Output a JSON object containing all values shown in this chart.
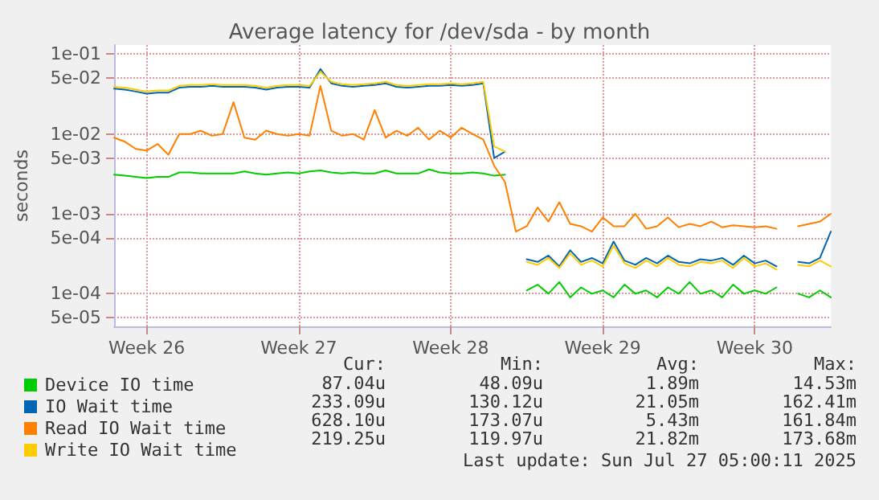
{
  "chart_data": {
    "type": "line",
    "title": "Average latency for /dev/sda - by month",
    "ylabel": "seconds",
    "log": "y",
    "grid": true,
    "legend": "bottom left",
    "marker": "none",
    "line_style": "solid",
    "ylim": [
      3.9e-05,
      0.13
    ],
    "yticks": [
      {
        "value": 0.1,
        "label": "1e-01"
      },
      {
        "value": 0.05,
        "label": "5e-02"
      },
      {
        "value": 0.01,
        "label": "1e-02"
      },
      {
        "value": 0.005,
        "label": "5e-03"
      },
      {
        "value": 0.001,
        "label": "1e-03"
      },
      {
        "value": 0.0005,
        "label": "5e-04"
      },
      {
        "value": 0.0001,
        "label": "1e-04"
      },
      {
        "value": 5e-05,
        "label": "5e-05"
      }
    ],
    "categories": [
      null,
      null,
      null,
      "Week 26",
      null,
      null,
      null,
      null,
      null,
      null,
      null,
      null,
      null,
      null,
      null,
      null,
      null,
      "Week 27",
      null,
      null,
      null,
      null,
      null,
      null,
      null,
      null,
      null,
      null,
      null,
      null,
      null,
      "Week 28",
      null,
      null,
      null,
      null,
      null,
      null,
      null,
      null,
      null,
      null,
      null,
      null,
      null,
      "Week 29",
      null,
      null,
      null,
      null,
      null,
      null,
      null,
      null,
      null,
      null,
      null,
      null,
      null,
      "Week 30",
      null,
      null,
      null,
      null,
      null,
      null,
      null
    ],
    "series": [
      {
        "name": "Device IO time",
        "color": "#00cc00",
        "values": [
          0.0031,
          0.003,
          0.0029,
          0.0028,
          0.0029,
          0.0029,
          0.0033,
          0.0033,
          0.0032,
          0.0032,
          0.0032,
          0.0032,
          0.0034,
          0.0032,
          0.0031,
          0.0032,
          0.0033,
          0.0032,
          0.0034,
          0.0035,
          0.0033,
          0.0032,
          0.0033,
          0.0032,
          0.0032,
          0.0035,
          0.0032,
          0.0032,
          0.0032,
          0.0036,
          0.0033,
          0.0032,
          0.0032,
          0.0033,
          0.0032,
          0.003,
          0.0031,
          null,
          0.00011,
          0.00013,
          0.0001,
          0.00014,
          9e-05,
          0.00012,
          0.0001,
          0.00011,
          9e-05,
          0.00013,
          0.0001,
          0.00011,
          9e-05,
          0.00012,
          0.0001,
          0.00014,
          0.0001,
          0.00011,
          9e-05,
          0.00013,
          0.0001,
          0.00011,
          0.0001,
          0.00012,
          null,
          0.0001,
          9e-05,
          0.00011,
          9e-05
        ]
      },
      {
        "name": "IO Wait time",
        "color": "#0066b3",
        "values": [
          0.037,
          0.036,
          0.034,
          0.032,
          0.033,
          0.033,
          0.038,
          0.039,
          0.039,
          0.04,
          0.039,
          0.039,
          0.039,
          0.038,
          0.036,
          0.038,
          0.039,
          0.039,
          0.038,
          0.065,
          0.043,
          0.04,
          0.039,
          0.04,
          0.041,
          0.043,
          0.039,
          0.038,
          0.039,
          0.04,
          0.04,
          0.041,
          0.04,
          0.041,
          0.043,
          0.005,
          0.006,
          null,
          0.00027,
          0.00025,
          0.0003,
          0.00022,
          0.00035,
          0.00025,
          0.00028,
          0.00024,
          0.00045,
          0.00026,
          0.00023,
          0.00028,
          0.00024,
          0.0003,
          0.00025,
          0.00024,
          0.00027,
          0.00026,
          0.00028,
          0.00023,
          0.0003,
          0.00024,
          0.00026,
          0.00022,
          null,
          0.00025,
          0.00024,
          0.00028,
          0.0006
        ]
      },
      {
        "name": "Read IO Wait time",
        "color": "#ff8000",
        "values": [
          0.009,
          0.008,
          0.0065,
          0.0062,
          0.0075,
          0.0055,
          0.01,
          0.01,
          0.011,
          0.0095,
          0.01,
          0.025,
          0.009,
          0.0085,
          0.011,
          0.01,
          0.0095,
          0.01,
          0.0095,
          0.04,
          0.011,
          0.0095,
          0.01,
          0.0085,
          0.02,
          0.009,
          0.011,
          0.0095,
          0.012,
          0.0085,
          0.011,
          0.009,
          0.012,
          0.01,
          0.0085,
          0.004,
          0.0025,
          0.0006,
          0.0007,
          0.0012,
          0.0008,
          0.0014,
          0.00075,
          0.0007,
          0.0006,
          0.0009,
          0.0007,
          0.0007,
          0.001,
          0.00065,
          0.0007,
          0.0009,
          0.00068,
          0.00075,
          0.0007,
          0.0008,
          0.00068,
          0.00072,
          0.0007,
          0.00068,
          0.0007,
          0.00065,
          null,
          0.0007,
          0.00075,
          0.0008,
          0.001
        ]
      },
      {
        "name": "Write IO Wait time",
        "color": "#ffcc00",
        "values": [
          0.039,
          0.038,
          0.036,
          0.034,
          0.035,
          0.035,
          0.04,
          0.041,
          0.041,
          0.042,
          0.041,
          0.041,
          0.041,
          0.04,
          0.038,
          0.04,
          0.041,
          0.041,
          0.04,
          0.06,
          0.045,
          0.042,
          0.041,
          0.042,
          0.043,
          0.045,
          0.041,
          0.04,
          0.041,
          0.042,
          0.042,
          0.043,
          0.042,
          0.043,
          0.045,
          0.007,
          0.006,
          null,
          0.00025,
          0.00023,
          0.00028,
          0.00021,
          0.00032,
          0.00023,
          0.00026,
          0.00022,
          0.0004,
          0.00024,
          0.00021,
          0.00026,
          0.00022,
          0.00028,
          0.00023,
          0.00022,
          0.00025,
          0.00024,
          0.00026,
          0.00021,
          0.00028,
          0.00022,
          0.00024,
          0.0002,
          null,
          0.00023,
          0.00022,
          0.00026,
          0.00022
        ]
      }
    ],
    "annotations": [
      "Cur:",
      "Min:",
      "Avg:",
      "Max:",
      "87.04u",
      "48.09u",
      "1.89m",
      "14.53m",
      "233.09u",
      "130.12u",
      "21.05m",
      "162.41m",
      "628.10u",
      "173.07u",
      "5.43m",
      "161.84m",
      "219.25u",
      "119.97u",
      "21.82m",
      "173.68m",
      "Last update: Sun Jul 27 05:00:11 2025"
    ]
  }
}
